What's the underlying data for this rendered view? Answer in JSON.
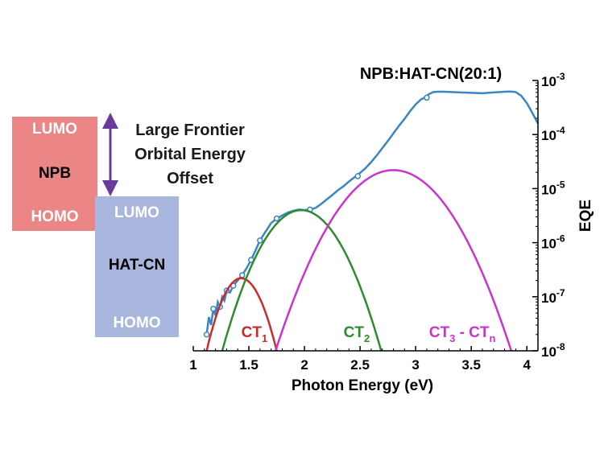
{
  "diagram": {
    "npb": {
      "lumo": "LUMO",
      "name": "NPB",
      "homo": "HOMO",
      "color": "#ec8585"
    },
    "hatcn": {
      "lumo": "LUMO",
      "name": "HAT-CN",
      "homo": "HOMO",
      "color": "#a9b6dd"
    },
    "offset_label": [
      "Large Frontier",
      "Orbital Energy",
      "Offset"
    ],
    "arrow_color": "#6a3a9c"
  },
  "chart_data": {
    "type": "line",
    "title": "NPB:HAT-CN(20:1)",
    "xlabel": "Photon Energy (eV)",
    "ylabel": "EQE",
    "xlim": [
      1.0,
      4.1
    ],
    "ylim": [
      1e-08,
      0.001
    ],
    "yscale": "log",
    "x_ticks": [
      "1",
      "1.5",
      "2",
      "2.5",
      "3",
      "3.5",
      "4"
    ],
    "x_tick_values": [
      1,
      1.5,
      2,
      2.5,
      3,
      3.5,
      4
    ],
    "y_ticks": [
      {
        "base": "10",
        "exp": "-8",
        "value": 1e-08
      },
      {
        "base": "10",
        "exp": "-7",
        "value": 1e-07
      },
      {
        "base": "10",
        "exp": "-6",
        "value": 1e-06
      },
      {
        "base": "10",
        "exp": "-5",
        "value": 1e-05
      },
      {
        "base": "10",
        "exp": "-4",
        "value": 0.0001
      },
      {
        "base": "10",
        "exp": "-3",
        "value": 0.001
      }
    ],
    "grid": false,
    "series": [
      {
        "color": "#3a86c0",
        "x": [
          1.12,
          1.14,
          1.16,
          1.18,
          1.2,
          1.22,
          1.24,
          1.26,
          1.28,
          1.3,
          1.33,
          1.36,
          1.4,
          1.44,
          1.48,
          1.52,
          1.56,
          1.6,
          1.65,
          1.7,
          1.75,
          1.8,
          1.85,
          1.9,
          1.95,
          2.0,
          2.05,
          2.1,
          2.15,
          2.2,
          2.25,
          2.3,
          2.35,
          2.4,
          2.45,
          2.5,
          2.55,
          2.6,
          2.65,
          2.7,
          2.75,
          2.8,
          2.85,
          2.9,
          2.95,
          3.0,
          3.05,
          3.08,
          3.12,
          3.16,
          3.2,
          3.25,
          3.3,
          3.4,
          3.5,
          3.6,
          3.7,
          3.8,
          3.85,
          3.9,
          3.95,
          4.0,
          4.05,
          4.1
        ],
        "y": [
          2e-08,
          4.2e-08,
          3e-08,
          6e-08,
          4.5e-08,
          8e-08,
          6.5e-08,
          1e-07,
          8.5e-08,
          1.3e-07,
          1.2e-07,
          1.6e-07,
          2e-07,
          2.5e-07,
          3.4e-07,
          4.8e-07,
          7.2e-07,
          1.1e-06,
          1.6e-06,
          2.3e-06,
          2.8e-06,
          3.2e-06,
          3.6e-06,
          3.9e-06,
          4.1e-06,
          4e-06,
          4.1e-06,
          4.4e-06,
          5.2e-06,
          6.3e-06,
          7.6e-06,
          9.3e-06,
          1.1e-05,
          1.35e-05,
          1.62e-05,
          1.95e-05,
          2.4e-05,
          3.1e-05,
          4.1e-05,
          5.6e-05,
          7.6e-05,
          0.000105,
          0.000145,
          0.000195,
          0.00027,
          0.00036,
          0.00045,
          0.00048,
          0.00056,
          0.00061,
          0.00062,
          0.00062,
          0.000615,
          0.0006,
          0.00059,
          0.00058,
          0.0006,
          0.00062,
          0.000625,
          0.00061,
          0.00052,
          0.00038,
          0.00025,
          0.00016
        ],
        "markers_x": [
          1.12,
          1.18,
          1.24,
          1.3,
          1.36,
          1.44,
          1.52,
          1.6,
          1.75,
          2.05,
          2.48,
          3.1
        ],
        "markers_y": [
          2e-08,
          6e-08,
          6.5e-08,
          1.3e-07,
          1.6e-07,
          2.5e-07,
          4.8e-07,
          1.1e-06,
          2.8e-06,
          4.1e-06,
          1.7e-05,
          0.00048
        ]
      },
      {
        "name": "CT",
        "sub": "1",
        "color": "#cc2a2a",
        "center": 1.43,
        "peak": 2.2e-07,
        "x_range": [
          1.12,
          1.75
        ],
        "label_x": 1.55,
        "label_y": 1.35e-08
      },
      {
        "name": "CT",
        "sub": "2",
        "color": "#2e8b2e",
        "center": 1.97,
        "peak": 4e-06,
        "x_range": [
          1.26,
          2.69
        ],
        "label_x": 2.47,
        "label_y": 1.35e-08
      },
      {
        "name": "CT",
        "sub_a": "3",
        "mid": " - CT",
        "sub_b": "n",
        "color": "#cc33cc",
        "center": 2.8,
        "peak": 2.2e-05,
        "x_range": [
          1.74,
          3.86
        ],
        "label_x": 3.42,
        "label_y": 1.35e-08
      }
    ]
  }
}
